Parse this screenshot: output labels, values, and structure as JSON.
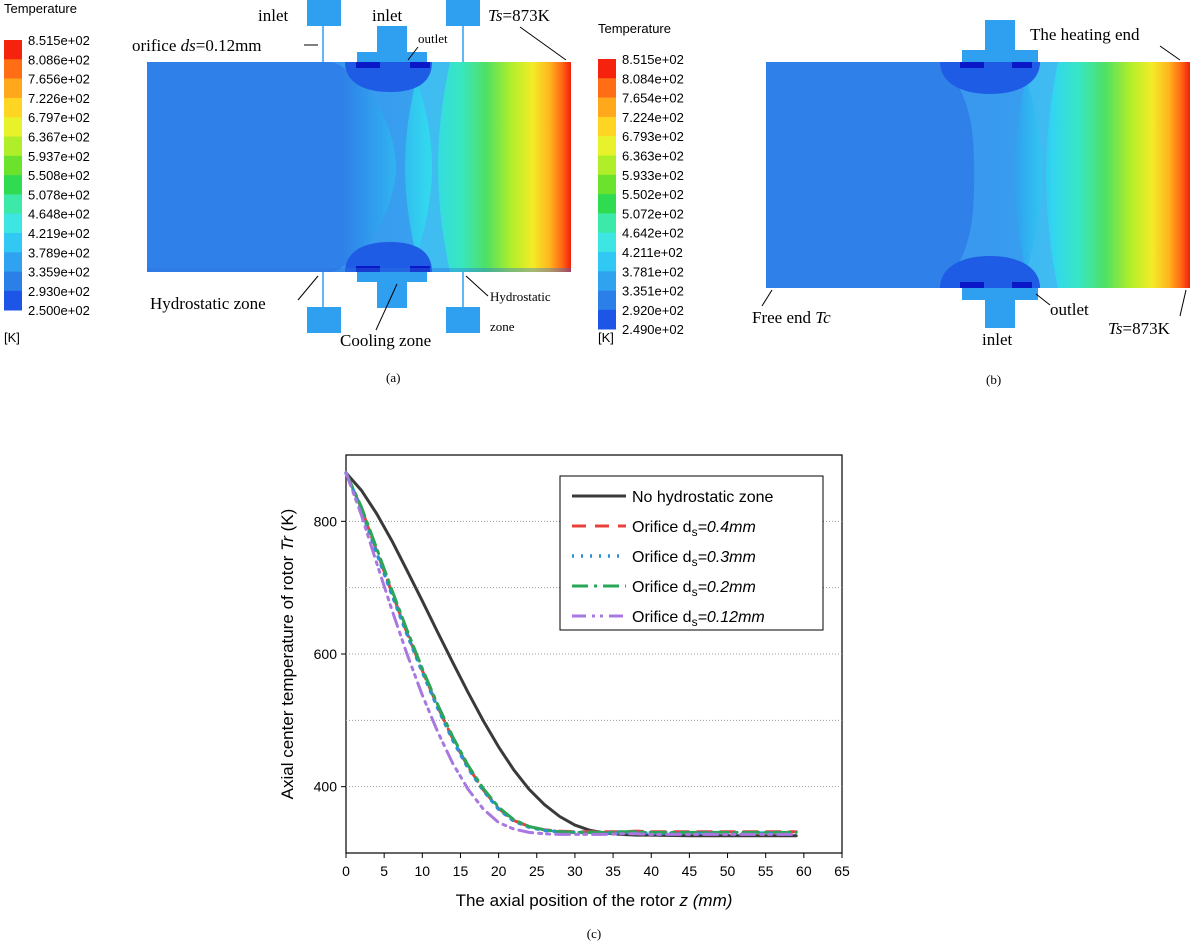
{
  "panel_a": {
    "legend_title": "Temperature",
    "legend_unit": "[K]",
    "legend_values": [
      "8.515e+02",
      "8.086e+02",
      "7.656e+02",
      "7.226e+02",
      "6.797e+02",
      "6.367e+02",
      "5.937e+02",
      "5.508e+02",
      "5.078e+02",
      "4.648e+02",
      "4.219e+02",
      "3.789e+02",
      "3.359e+02",
      "2.930e+02",
      "2.500e+02"
    ],
    "label_inlet_left": "inlet",
    "label_inlet_center": "inlet",
    "label_outlet": "outlet",
    "label_orifice_prefix": "orifice ",
    "label_orifice_var": "ds",
    "label_orifice_suffix": "=0.12mm",
    "label_ts_var": "Ts",
    "label_ts_value": "=873K",
    "label_hydrostatic_left": "Hydrostatic zone",
    "label_cooling": "Cooling zone",
    "label_hydrostatic_right_1": "Hydrostatic",
    "label_hydrostatic_right_2": "zone",
    "caption": "(a)"
  },
  "panel_b": {
    "legend_title": "Temperature",
    "legend_unit": "[K]",
    "legend_values": [
      "8.515e+02",
      "8.084e+02",
      "7.654e+02",
      "7.224e+02",
      "6.793e+02",
      "6.363e+02",
      "5.933e+02",
      "5.502e+02",
      "5.072e+02",
      "4.642e+02",
      "4.211e+02",
      "3.781e+02",
      "3.351e+02",
      "2.920e+02",
      "2.490e+02"
    ],
    "label_heating": "The heating end",
    "label_free_prefix": "Free end ",
    "label_free_var": "Tc",
    "label_outlet": "outlet",
    "label_inlet": "inlet",
    "label_ts_var": "Ts",
    "label_ts_value": "=873K",
    "caption": "(b)"
  },
  "colors": {
    "scale": [
      "#0a14d6",
      "#1d56e6",
      "#2a7fe8",
      "#2fa3ef",
      "#31c8f3",
      "#3ee6e3",
      "#3ce9a8",
      "#2fdb51",
      "#6be22c",
      "#b1ee2a",
      "#e8f22a",
      "#ffd524",
      "#ffa81c",
      "#ff6e14",
      "#f5230d"
    ],
    "rotor_base": "#2f80e8",
    "pad": "#2f9ff0"
  },
  "chart_data": {
    "type": "line",
    "caption": "(c)",
    "xlabel_prefix": "The axial position of the rotor ",
    "xlabel_var": "z",
    "xlabel_unit": " (mm)",
    "ylabel_prefix": "Axial center temperature of rotor ",
    "ylabel_var": "Tr",
    "ylabel_unit": " (K)",
    "xlim": [
      0,
      65
    ],
    "ylim": [
      300,
      900
    ],
    "x_ticks": [
      0,
      5,
      10,
      15,
      20,
      25,
      30,
      35,
      40,
      45,
      50,
      55,
      60,
      65
    ],
    "y_ticks": [
      400,
      600,
      800
    ],
    "y_gridlines": [
      400,
      500,
      600,
      700,
      800
    ],
    "legend_position": "top-right",
    "series": [
      {
        "name": "No hydrostatic zone",
        "legend_prefix": "No hydrostatic zone",
        "legend_sub": "",
        "legend_suffix": "",
        "color": "#3a3a3a",
        "dash": "none",
        "width": 3,
        "x": [
          0,
          2,
          4,
          6,
          8,
          10,
          12,
          14,
          16,
          18,
          20,
          22,
          24,
          26,
          28,
          30,
          32,
          34,
          36,
          38,
          40,
          45,
          50,
          55,
          59
        ],
        "y": [
          873,
          847,
          812,
          771,
          726,
          680,
          633,
          587,
          542,
          499,
          460,
          425,
          396,
          373,
          355,
          342,
          334,
          330,
          328,
          327,
          327,
          326,
          326,
          326,
          326
        ]
      },
      {
        "name": "Orifice ds=0.4mm",
        "legend_prefix": "Orifice d",
        "legend_sub": "s",
        "legend_suffix": "=0.4mm",
        "color": "#e8403a",
        "dash": "14,9",
        "width": 3,
        "x": [
          0,
          2,
          4,
          6,
          8,
          10,
          12,
          14,
          16,
          18,
          20,
          22,
          24,
          26,
          28,
          30,
          32,
          34,
          36,
          38,
          40,
          45,
          50,
          55,
          59
        ],
        "y": [
          873,
          820,
          756,
          693,
          632,
          575,
          521,
          472,
          430,
          395,
          367,
          349,
          340,
          335,
          333,
          332,
          332,
          332,
          332,
          333,
          332,
          332,
          332,
          332,
          332
        ]
      },
      {
        "name": "Orifice ds=0.3mm",
        "legend_prefix": "Orifice d",
        "legend_sub": "s",
        "legend_suffix": "=0.3mm",
        "color": "#2e8fd6",
        "dash": "2,7",
        "width": 3.5,
        "x": [
          0,
          2,
          4,
          6,
          8,
          10,
          12,
          14,
          16,
          18,
          20,
          22,
          24,
          26,
          28,
          30,
          32,
          34,
          36,
          38,
          40,
          45,
          50,
          55,
          59
        ],
        "y": [
          873,
          818,
          753,
          690,
          630,
          573,
          519,
          470,
          428,
          394,
          366,
          348,
          339,
          334,
          332,
          331,
          331,
          330,
          331,
          331,
          330,
          330,
          330,
          330,
          330
        ]
      },
      {
        "name": "Orifice ds=0.2mm",
        "legend_prefix": "Orifice d",
        "legend_sub": "s",
        "legend_suffix": "=0.2mm",
        "color": "#2aa65a",
        "dash": "16,6,3,6",
        "width": 3,
        "x": [
          0,
          2,
          4,
          6,
          8,
          10,
          12,
          14,
          16,
          18,
          20,
          22,
          24,
          26,
          28,
          30,
          32,
          34,
          36,
          38,
          40,
          45,
          50,
          55,
          59
        ],
        "y": [
          873,
          822,
          760,
          697,
          636,
          578,
          524,
          475,
          432,
          397,
          369,
          350,
          340,
          335,
          332,
          331,
          331,
          331,
          332,
          332,
          331,
          331,
          331,
          331,
          331
        ]
      },
      {
        "name": "Orifice ds=0.12mm",
        "legend_prefix": "Orifice d",
        "legend_sub": "s",
        "legend_suffix": "=0.12mm",
        "color": "#a878e0",
        "dash": "14,6,3,5,3,6",
        "width": 3,
        "x": [
          0,
          2,
          4,
          6,
          8,
          10,
          12,
          14,
          16,
          18,
          20,
          22,
          24,
          26,
          28,
          30,
          32,
          34,
          36,
          38,
          40,
          45,
          50,
          55,
          59
        ],
        "y": [
          873,
          810,
          738,
          667,
          600,
          538,
          483,
          435,
          396,
          366,
          346,
          336,
          331,
          329,
          328,
          328,
          328,
          328,
          329,
          329,
          328,
          328,
          328,
          328,
          328
        ]
      }
    ]
  }
}
